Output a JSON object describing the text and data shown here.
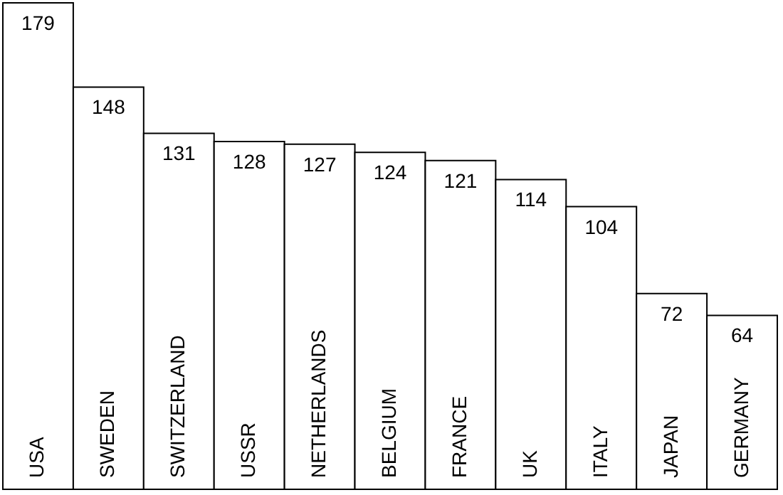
{
  "chart_data": {
    "type": "bar",
    "categories": [
      "USA",
      "SWEDEN",
      "SWITZERLAND",
      "USSR",
      "NETHERLANDS",
      "BELGIUM",
      "FRANCE",
      "UK",
      "ITALY",
      "JAPAN",
      "GERMANY"
    ],
    "values": [
      179,
      148,
      131,
      128,
      127,
      124,
      121,
      114,
      104,
      72,
      64
    ],
    "color": "#ffffff",
    "data_labels": true
  }
}
